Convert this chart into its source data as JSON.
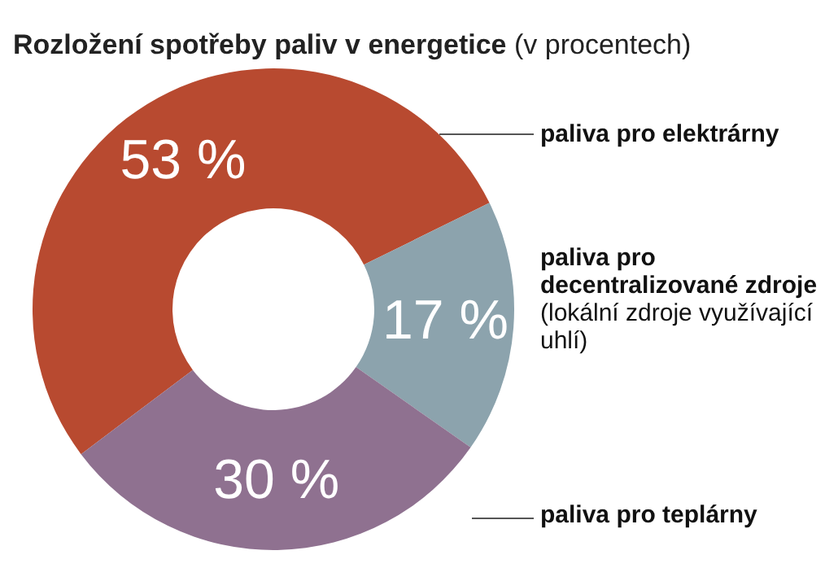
{
  "chart_data": {
    "type": "donut",
    "title": "Rozložení spotřeby paliv v energetice (v procentech)",
    "categories": [
      "paliva pro elektrárny",
      "paliva pro decentralizované zdroje (lokální zdroje využívající uhlí)",
      "paliva pro teplárny"
    ],
    "values": [
      53,
      17,
      30
    ],
    "colors": [
      "#b84a30",
      "#8ca3ad",
      "#8f7190"
    ],
    "value_labels": [
      "53 %",
      "17 %",
      "30 %"
    ]
  }
}
